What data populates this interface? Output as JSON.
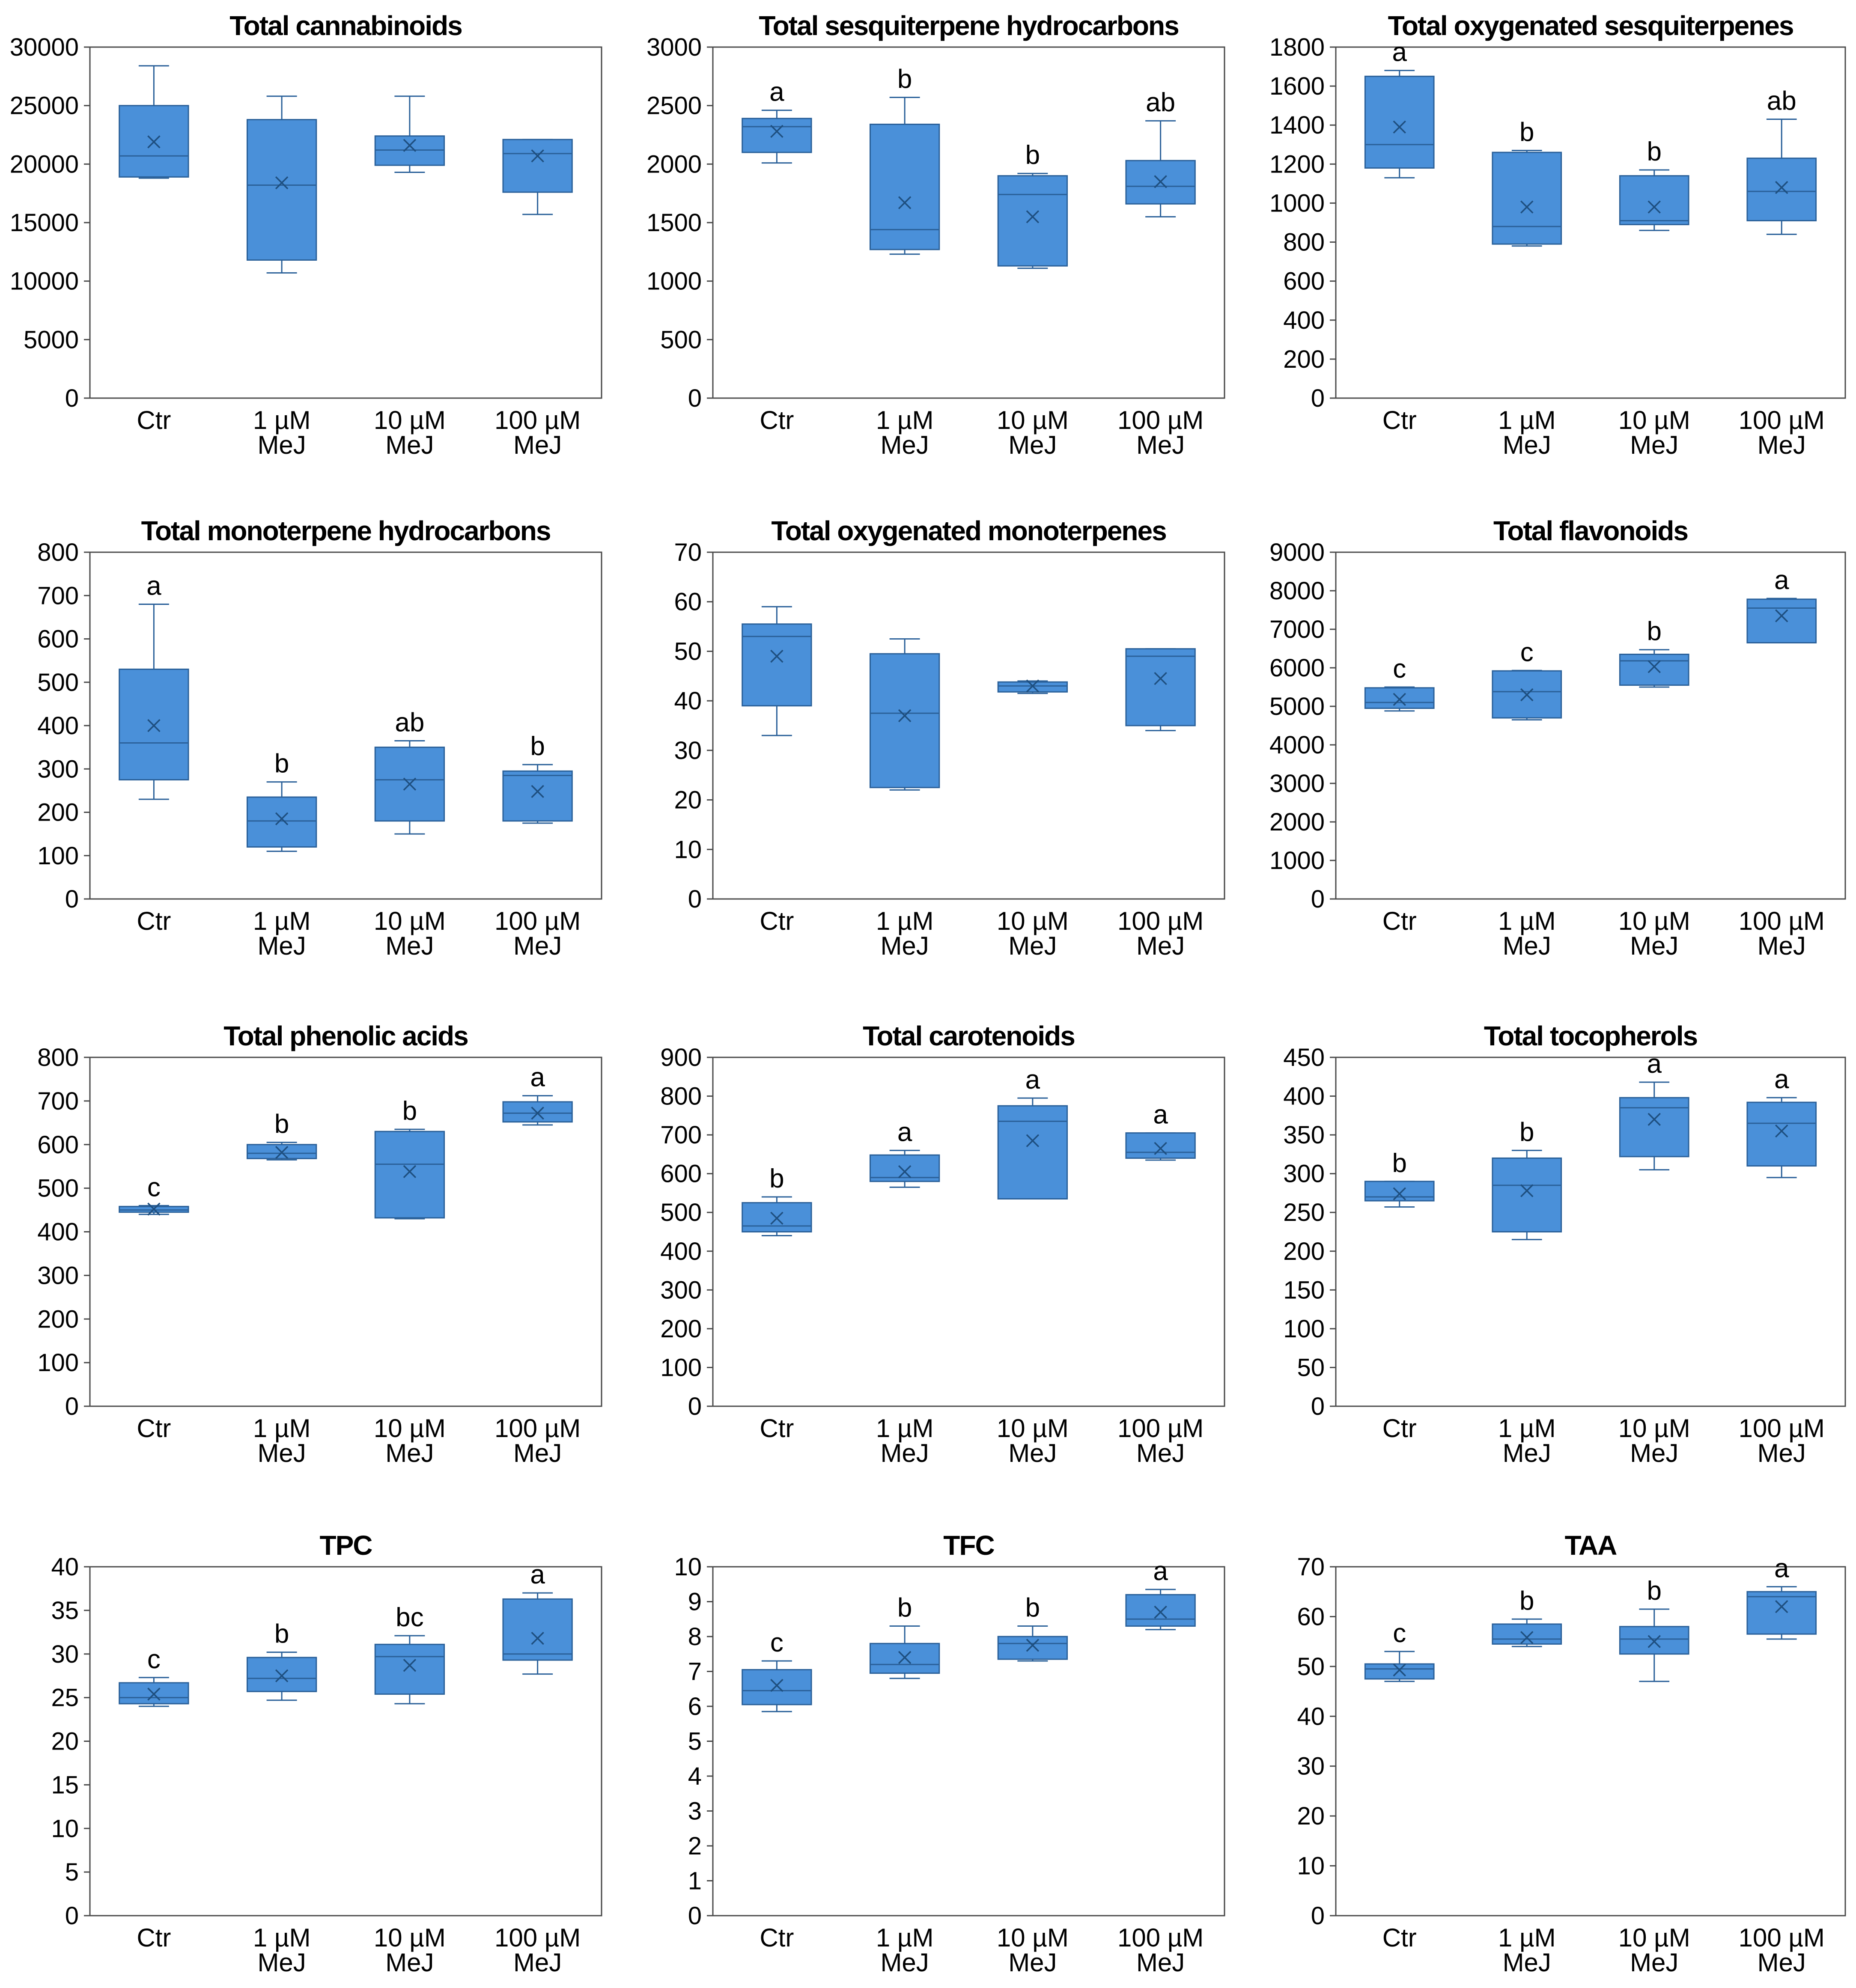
{
  "figure": {
    "background": "#ffffff",
    "box_fill": "#4a90d9",
    "box_stroke": "#2a6099"
  },
  "chart_data": [
    {
      "type": "box",
      "title": "Total cannabinoids",
      "ylim": [
        0,
        30000
      ],
      "yticks": [
        0,
        5000,
        10000,
        15000,
        20000,
        25000,
        30000
      ],
      "categories": [
        [
          "Ctr"
        ],
        [
          "1 µM",
          "MeJ"
        ],
        [
          "10 µM",
          "MeJ"
        ],
        [
          "100 µM",
          "MeJ"
        ]
      ],
      "boxes": [
        {
          "min": 18800,
          "q1": 18900,
          "median": 20700,
          "q3": 25000,
          "max": 28400,
          "mean": 21900,
          "letter": ""
        },
        {
          "min": 10700,
          "q1": 11800,
          "median": 18200,
          "q3": 23800,
          "max": 25800,
          "mean": 18400,
          "letter": ""
        },
        {
          "min": 19300,
          "q1": 19900,
          "median": 21200,
          "q3": 22400,
          "max": 25800,
          "mean": 21600,
          "letter": ""
        },
        {
          "min": 15700,
          "q1": 17600,
          "median": 20900,
          "q3": 22100,
          "max": 22100,
          "mean": 20700,
          "letter": ""
        }
      ]
    },
    {
      "type": "box",
      "title": "Total sesquiterpene hydrocarbons",
      "ylim": [
        0,
        3000
      ],
      "yticks": [
        0,
        500,
        1000,
        1500,
        2000,
        2500,
        3000
      ],
      "categories": [
        [
          "Ctr"
        ],
        [
          "1 µM",
          "MeJ"
        ],
        [
          "10 µM",
          "MeJ"
        ],
        [
          "100 µM",
          "MeJ"
        ]
      ],
      "boxes": [
        {
          "min": 2010,
          "q1": 2100,
          "median": 2320,
          "q3": 2390,
          "max": 2460,
          "mean": 2280,
          "letter": "a"
        },
        {
          "min": 1230,
          "q1": 1270,
          "median": 1440,
          "q3": 2340,
          "max": 2570,
          "mean": 1670,
          "letter": "b"
        },
        {
          "min": 1110,
          "q1": 1130,
          "median": 1740,
          "q3": 1900,
          "max": 1920,
          "mean": 1550,
          "letter": "b"
        },
        {
          "min": 1550,
          "q1": 1660,
          "median": 1810,
          "q3": 2030,
          "max": 2370,
          "mean": 1850,
          "letter": "ab"
        }
      ]
    },
    {
      "type": "box",
      "title": "Total oxygenated sesquiterpenes",
      "ylim": [
        0,
        1800
      ],
      "yticks": [
        0,
        200,
        400,
        600,
        800,
        1000,
        1200,
        1400,
        1600,
        1800
      ],
      "categories": [
        [
          "Ctr"
        ],
        [
          "1 µM",
          "MeJ"
        ],
        [
          "10 µM",
          "MeJ"
        ],
        [
          "100 µM",
          "MeJ"
        ]
      ],
      "boxes": [
        {
          "min": 1130,
          "q1": 1180,
          "median": 1300,
          "q3": 1650,
          "max": 1680,
          "mean": 1390,
          "letter": "a"
        },
        {
          "min": 780,
          "q1": 790,
          "median": 880,
          "q3": 1260,
          "max": 1270,
          "mean": 980,
          "letter": "b"
        },
        {
          "min": 860,
          "q1": 890,
          "median": 910,
          "q3": 1140,
          "max": 1170,
          "mean": 980,
          "letter": "b"
        },
        {
          "min": 840,
          "q1": 910,
          "median": 1060,
          "q3": 1230,
          "max": 1430,
          "mean": 1080,
          "letter": "ab"
        }
      ]
    },
    {
      "type": "box",
      "title": "Total monoterpene hydrocarbons",
      "ylim": [
        0,
        800
      ],
      "yticks": [
        0,
        100,
        200,
        300,
        400,
        500,
        600,
        700,
        800
      ],
      "categories": [
        [
          "Ctr"
        ],
        [
          "1 µM",
          "MeJ"
        ],
        [
          "10 µM",
          "MeJ"
        ],
        [
          "100 µM",
          "MeJ"
        ]
      ],
      "boxes": [
        {
          "min": 230,
          "q1": 275,
          "median": 360,
          "q3": 530,
          "max": 680,
          "mean": 400,
          "letter": "a"
        },
        {
          "min": 110,
          "q1": 120,
          "median": 180,
          "q3": 235,
          "max": 270,
          "mean": 185,
          "letter": "b"
        },
        {
          "min": 150,
          "q1": 180,
          "median": 275,
          "q3": 350,
          "max": 365,
          "mean": 265,
          "letter": "ab"
        },
        {
          "min": 175,
          "q1": 180,
          "median": 285,
          "q3": 295,
          "max": 310,
          "mean": 248,
          "letter": "b"
        }
      ]
    },
    {
      "type": "box",
      "title": "Total oxygenated monoterpenes",
      "ylim": [
        0,
        70
      ],
      "yticks": [
        0,
        10,
        20,
        30,
        40,
        50,
        60,
        70
      ],
      "categories": [
        [
          "Ctr"
        ],
        [
          "1 µM",
          "MeJ"
        ],
        [
          "10 µM",
          "MeJ"
        ],
        [
          "100 µM",
          "MeJ"
        ]
      ],
      "boxes": [
        {
          "min": 33,
          "q1": 39,
          "median": 53,
          "q3": 55.5,
          "max": 59,
          "mean": 49,
          "letter": ""
        },
        {
          "min": 22,
          "q1": 22.5,
          "median": 37.5,
          "q3": 49.5,
          "max": 52.5,
          "mean": 37,
          "letter": ""
        },
        {
          "min": 41.5,
          "q1": 41.8,
          "median": 43,
          "q3": 43.8,
          "max": 44,
          "mean": 43,
          "letter": ""
        },
        {
          "min": 34,
          "q1": 35,
          "median": 49,
          "q3": 50.5,
          "max": 50.5,
          "mean": 44.5,
          "letter": ""
        }
      ]
    },
    {
      "type": "box",
      "title": "Total flavonoids",
      "ylim": [
        0,
        9000
      ],
      "yticks": [
        0,
        1000,
        2000,
        3000,
        4000,
        5000,
        6000,
        7000,
        8000,
        9000
      ],
      "categories": [
        [
          "Ctr"
        ],
        [
          "1 µM",
          "MeJ"
        ],
        [
          "10 µM",
          "MeJ"
        ],
        [
          "100 µM",
          "MeJ"
        ]
      ],
      "boxes": [
        {
          "min": 4880,
          "q1": 4950,
          "median": 5100,
          "q3": 5480,
          "max": 5500,
          "mean": 5180,
          "letter": "c"
        },
        {
          "min": 4650,
          "q1": 4700,
          "median": 5380,
          "q3": 5920,
          "max": 5930,
          "mean": 5300,
          "letter": "c"
        },
        {
          "min": 5500,
          "q1": 5550,
          "median": 6180,
          "q3": 6350,
          "max": 6470,
          "mean": 6030,
          "letter": "b"
        },
        {
          "min": 6650,
          "q1": 6650,
          "median": 7550,
          "q3": 7780,
          "max": 7800,
          "mean": 7350,
          "letter": "a"
        }
      ]
    },
    {
      "type": "box",
      "title": "Total phenolic acids",
      "ylim": [
        0,
        800
      ],
      "yticks": [
        0,
        100,
        200,
        300,
        400,
        500,
        600,
        700,
        800
      ],
      "categories": [
        [
          "Ctr"
        ],
        [
          "1 µM",
          "MeJ"
        ],
        [
          "10 µM",
          "MeJ"
        ],
        [
          "100 µM",
          "MeJ"
        ]
      ],
      "boxes": [
        {
          "min": 440,
          "q1": 445,
          "median": 450,
          "q3": 458,
          "max": 460,
          "mean": 452,
          "letter": "c"
        },
        {
          "min": 565,
          "q1": 568,
          "median": 580,
          "q3": 600,
          "max": 605,
          "mean": 582,
          "letter": "b"
        },
        {
          "min": 430,
          "q1": 432,
          "median": 555,
          "q3": 630,
          "max": 635,
          "mean": 538,
          "letter": "b"
        },
        {
          "min": 645,
          "q1": 652,
          "median": 672,
          "q3": 698,
          "max": 712,
          "mean": 672,
          "letter": "a"
        }
      ]
    },
    {
      "type": "box",
      "title": "Total carotenoids",
      "ylim": [
        0,
        900
      ],
      "yticks": [
        0,
        100,
        200,
        300,
        400,
        500,
        600,
        700,
        800,
        900
      ],
      "categories": [
        [
          "Ctr"
        ],
        [
          "1 µM",
          "MeJ"
        ],
        [
          "10 µM",
          "MeJ"
        ],
        [
          "100 µM",
          "MeJ"
        ]
      ],
      "boxes": [
        {
          "min": 440,
          "q1": 450,
          "median": 465,
          "q3": 525,
          "max": 540,
          "mean": 485,
          "letter": "b"
        },
        {
          "min": 565,
          "q1": 580,
          "median": 590,
          "q3": 648,
          "max": 660,
          "mean": 605,
          "letter": "a"
        },
        {
          "min": 535,
          "q1": 535,
          "median": 735,
          "q3": 775,
          "max": 795,
          "mean": 685,
          "letter": "a"
        },
        {
          "min": 635,
          "q1": 640,
          "median": 655,
          "q3": 705,
          "max": 705,
          "mean": 665,
          "letter": "a"
        }
      ]
    },
    {
      "type": "box",
      "title": "Total tocopherols",
      "ylim": [
        0,
        450
      ],
      "yticks": [
        0,
        50,
        100,
        150,
        200,
        250,
        300,
        350,
        400,
        450
      ],
      "categories": [
        [
          "Ctr"
        ],
        [
          "1 µM",
          "MeJ"
        ],
        [
          "10 µM",
          "MeJ"
        ],
        [
          "100 µM",
          "MeJ"
        ]
      ],
      "boxes": [
        {
          "min": 257,
          "q1": 265,
          "median": 270,
          "q3": 290,
          "max": 290,
          "mean": 274,
          "letter": "b"
        },
        {
          "min": 215,
          "q1": 225,
          "median": 285,
          "q3": 320,
          "max": 330,
          "mean": 278,
          "letter": "b"
        },
        {
          "min": 305,
          "q1": 322,
          "median": 385,
          "q3": 398,
          "max": 418,
          "mean": 370,
          "letter": "a"
        },
        {
          "min": 295,
          "q1": 310,
          "median": 365,
          "q3": 392,
          "max": 398,
          "mean": 355,
          "letter": "a"
        }
      ]
    },
    {
      "type": "box",
      "title": "TPC",
      "ylim": [
        0,
        40
      ],
      "yticks": [
        0,
        5,
        10,
        15,
        20,
        25,
        30,
        35,
        40
      ],
      "categories": [
        [
          "Ctr"
        ],
        [
          "1 µM",
          "MeJ"
        ],
        [
          "10 µM",
          "MeJ"
        ],
        [
          "100 µM",
          "MeJ"
        ]
      ],
      "boxes": [
        {
          "min": 24,
          "q1": 24.3,
          "median": 25,
          "q3": 26.7,
          "max": 27.3,
          "mean": 25.4,
          "letter": "c"
        },
        {
          "min": 24.7,
          "q1": 25.7,
          "median": 27.2,
          "q3": 29.6,
          "max": 30.2,
          "mean": 27.5,
          "letter": "b"
        },
        {
          "min": 24.3,
          "q1": 25.4,
          "median": 29.7,
          "q3": 31.1,
          "max": 32.1,
          "mean": 28.7,
          "letter": "bc"
        },
        {
          "min": 27.7,
          "q1": 29.3,
          "median": 30,
          "q3": 36.3,
          "max": 37,
          "mean": 31.8,
          "letter": "a"
        }
      ]
    },
    {
      "type": "box",
      "title": "TFC",
      "ylim": [
        0,
        10
      ],
      "yticks": [
        0,
        1,
        2,
        3,
        4,
        5,
        6,
        7,
        8,
        9,
        10
      ],
      "categories": [
        [
          "Ctr"
        ],
        [
          "1 µM",
          "MeJ"
        ],
        [
          "10 µM",
          "MeJ"
        ],
        [
          "100 µM",
          "MeJ"
        ]
      ],
      "boxes": [
        {
          "min": 5.85,
          "q1": 6.05,
          "median": 6.45,
          "q3": 7.05,
          "max": 7.3,
          "mean": 6.6,
          "letter": "c"
        },
        {
          "min": 6.8,
          "q1": 6.95,
          "median": 7.2,
          "q3": 7.8,
          "max": 8.3,
          "mean": 7.4,
          "letter": "b"
        },
        {
          "min": 7.3,
          "q1": 7.35,
          "median": 7.8,
          "q3": 8.0,
          "max": 8.3,
          "mean": 7.75,
          "letter": "b"
        },
        {
          "min": 8.2,
          "q1": 8.3,
          "median": 8.5,
          "q3": 9.2,
          "max": 9.35,
          "mean": 8.7,
          "letter": "a"
        }
      ]
    },
    {
      "type": "box",
      "title": "TAA",
      "ylim": [
        0,
        70
      ],
      "yticks": [
        0,
        10,
        20,
        30,
        40,
        50,
        60,
        70
      ],
      "categories": [
        [
          "Ctr"
        ],
        [
          "1 µM",
          "MeJ"
        ],
        [
          "10 µM",
          "MeJ"
        ],
        [
          "100 µM",
          "MeJ"
        ]
      ],
      "boxes": [
        {
          "min": 47,
          "q1": 47.5,
          "median": 49.5,
          "q3": 50.5,
          "max": 53,
          "mean": 49.3,
          "letter": "c"
        },
        {
          "min": 54,
          "q1": 54.5,
          "median": 55.5,
          "q3": 58.5,
          "max": 59.5,
          "mean": 55.8,
          "letter": "b"
        },
        {
          "min": 47,
          "q1": 52.5,
          "median": 55.5,
          "q3": 58,
          "max": 61.5,
          "mean": 55,
          "letter": "b"
        },
        {
          "min": 55.5,
          "q1": 56.5,
          "median": 64,
          "q3": 65,
          "max": 66,
          "mean": 62,
          "letter": "a"
        }
      ]
    }
  ]
}
